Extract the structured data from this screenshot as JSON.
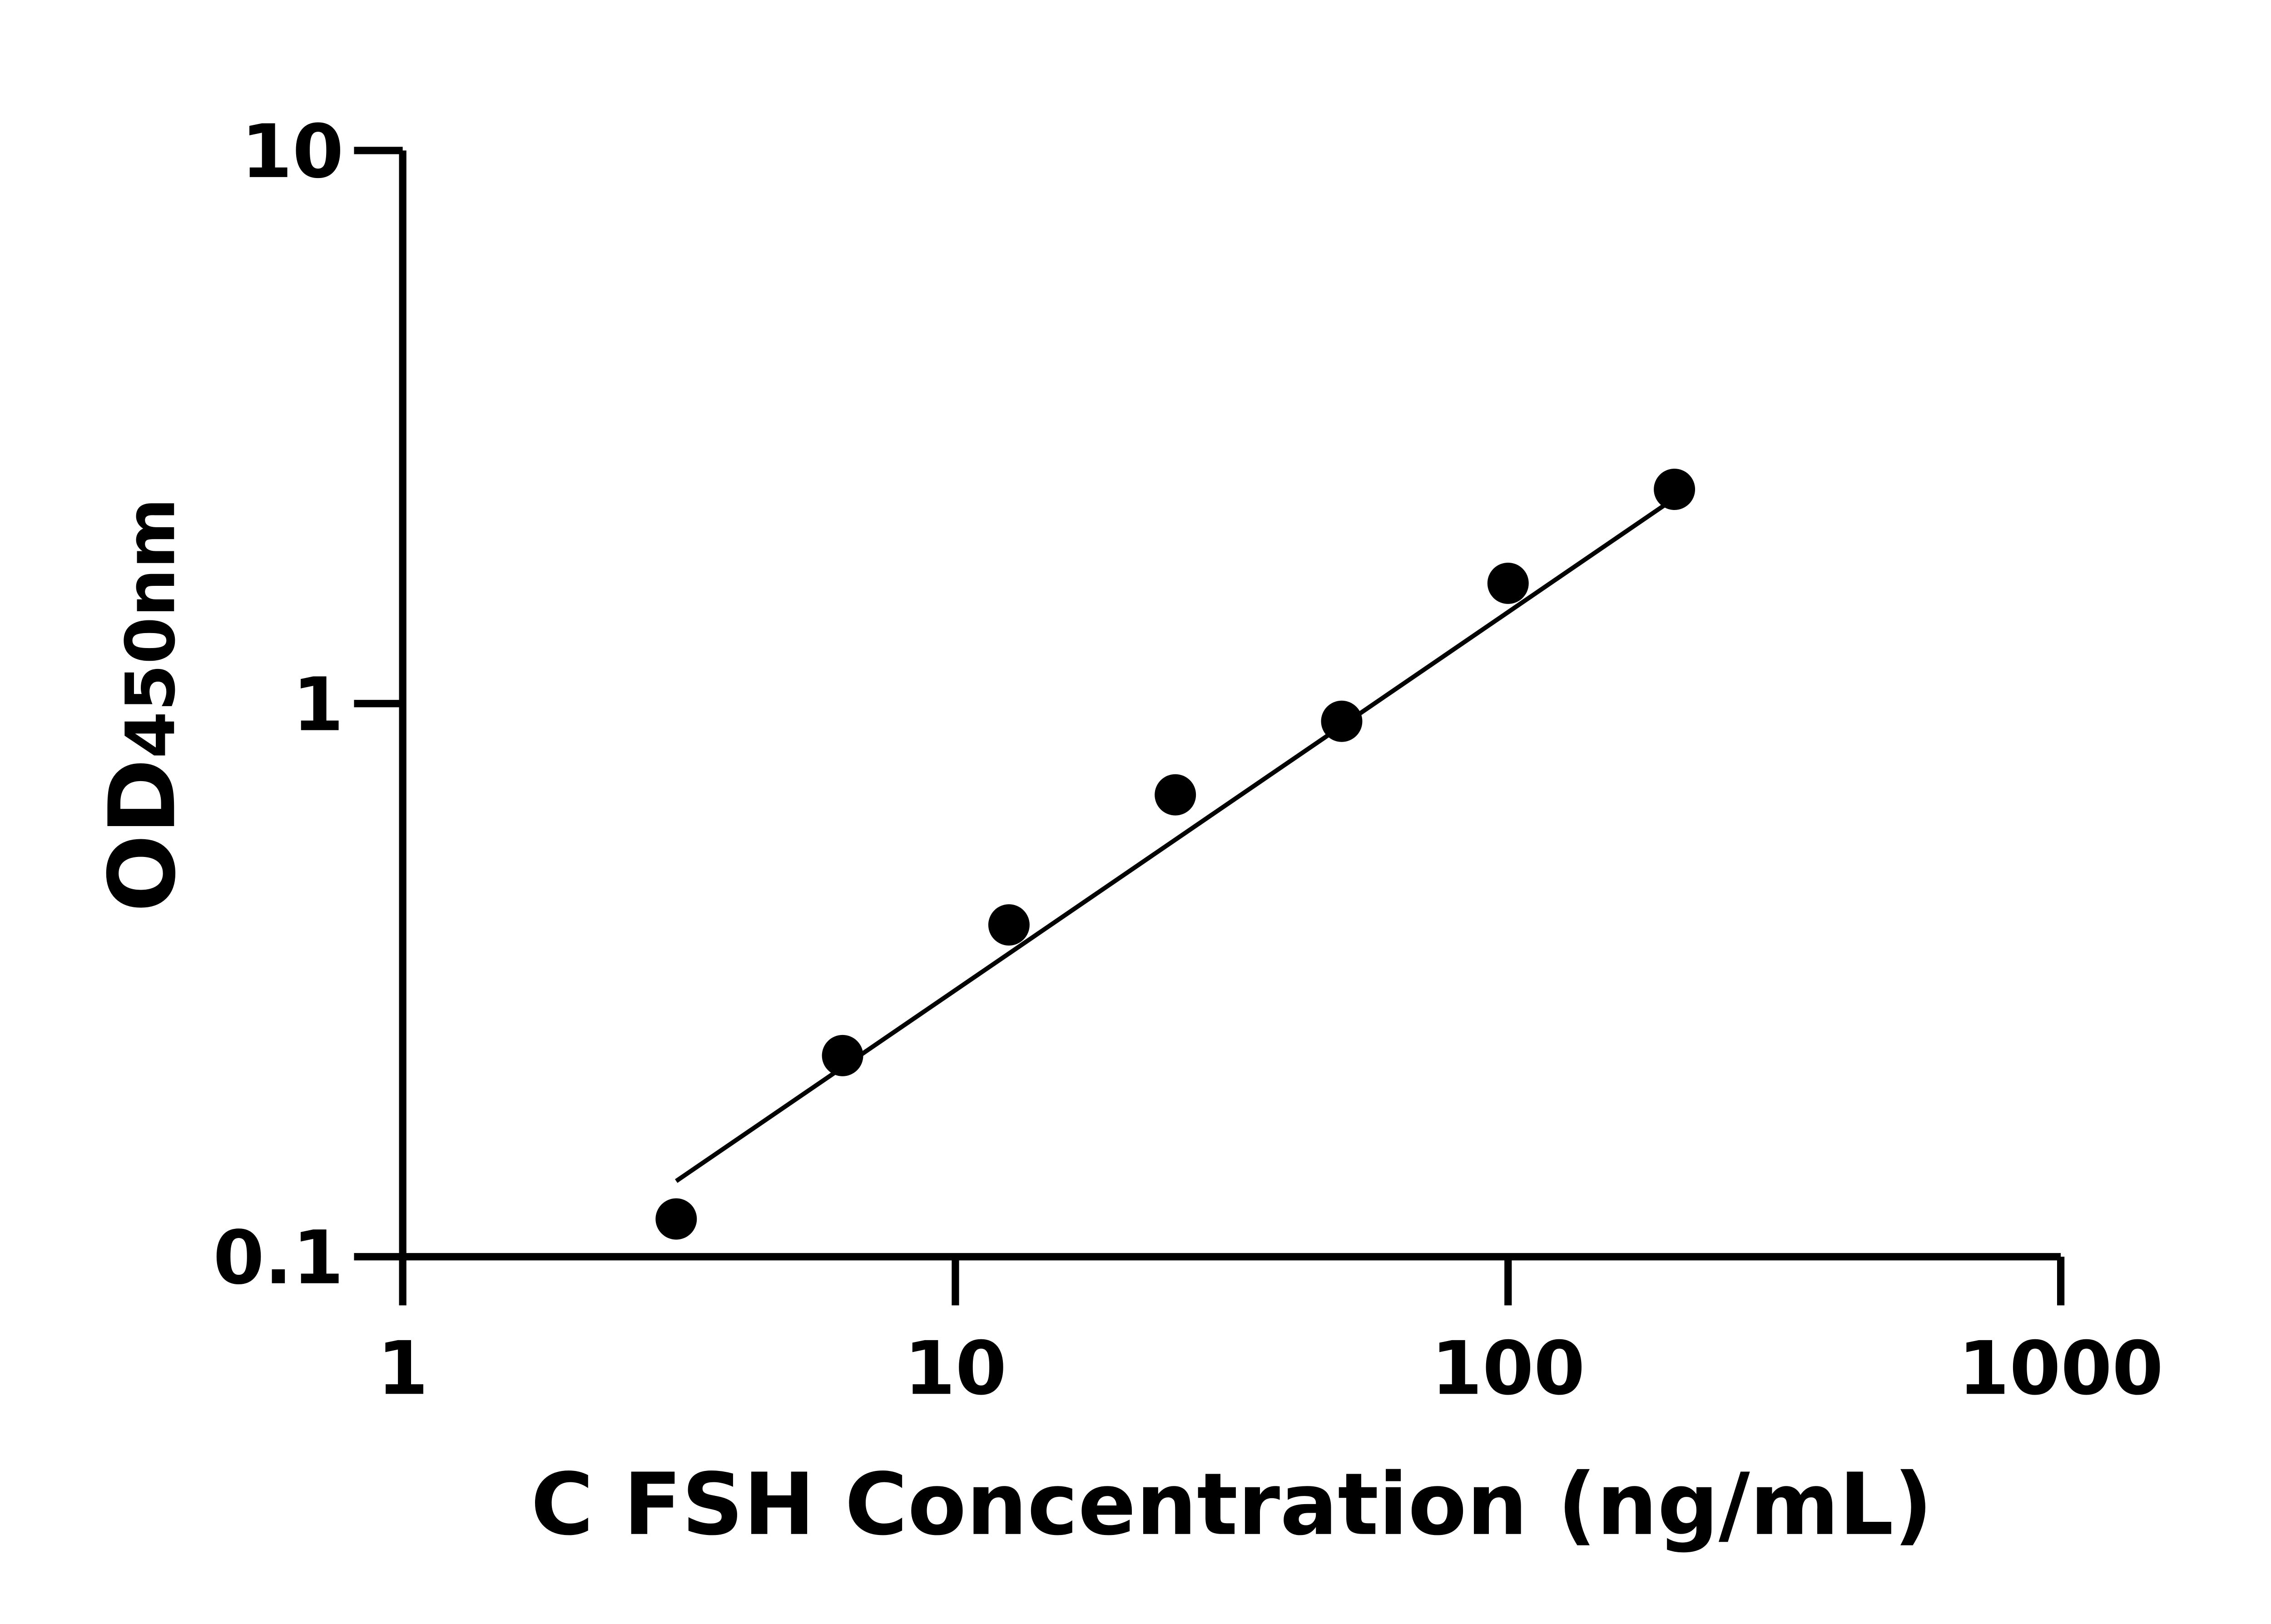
{
  "chart_data": {
    "type": "scatter",
    "title": "",
    "xlabel": "C FSH Concentration (ng/mL)",
    "ylabel": "OD450nm",
    "ylabel_main": "OD",
    "ylabel_sub": "450nm",
    "x_scale": "log",
    "y_scale": "log",
    "xlim": [
      1,
      1000
    ],
    "ylim": [
      0.1,
      10
    ],
    "x_ticks": [
      1,
      10,
      100,
      1000
    ],
    "x_tick_labels": [
      "1",
      "10",
      "100",
      "1000"
    ],
    "y_ticks": [
      0.1,
      1,
      10
    ],
    "y_tick_labels": [
      "0.1",
      "1",
      "10"
    ],
    "grid": false,
    "legend": "none",
    "series": [
      {
        "x": [
          3.125,
          6.25,
          12.5,
          25,
          50,
          100,
          200
        ],
        "y": [
          0.117,
          0.231,
          0.398,
          0.684,
          0.929,
          1.65,
          2.44
        ],
        "marker": "circle",
        "color": "#000000"
      }
    ],
    "fit_line": {
      "x": [
        3.125,
        200
      ],
      "y": [
        0.137,
        2.35
      ],
      "color": "#000000"
    }
  }
}
